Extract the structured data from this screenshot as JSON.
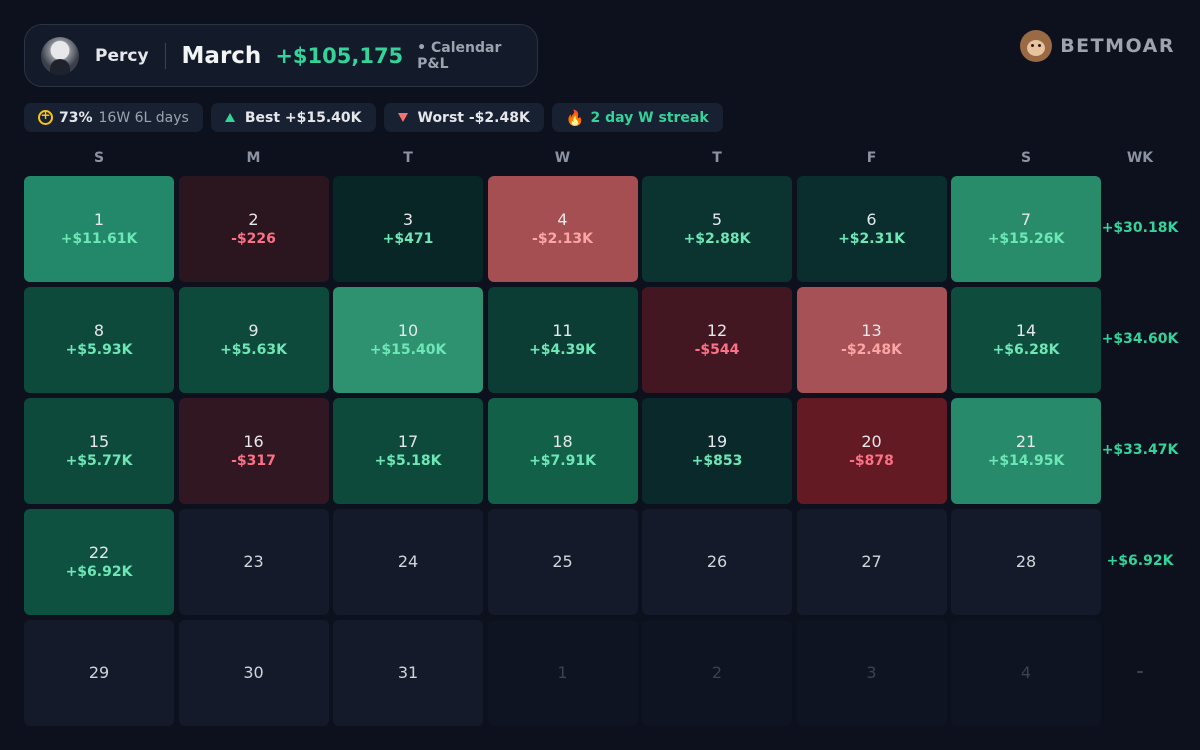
{
  "header": {
    "user_name": "Percy",
    "month": "March",
    "total": "+$105,175",
    "subtitle": "• Calendar P&L"
  },
  "brand": {
    "name": "BETMOAR",
    "logo_icon": "monkey-icon"
  },
  "stats": {
    "win_rate": "73%",
    "record": "16W 6L days",
    "best": "Best +$15.40K",
    "worst": "Worst -$2.48K",
    "streak": "2 day W streak"
  },
  "weekdays": [
    "S",
    "M",
    "T",
    "W",
    "T",
    "F",
    "S",
    "WK"
  ],
  "colors": {
    "positive_text": "#34d399",
    "negative_text": "#f87171",
    "empty_cell": "#141a29"
  },
  "weeks": [
    {
      "total": "+$30.18K",
      "days": [
        {
          "day": "1",
          "pnl": "+$11.61K",
          "color": "#23876a"
        },
        {
          "day": "2",
          "pnl": "-$226",
          "color": "#2b1620"
        },
        {
          "day": "3",
          "pnl": "+$471",
          "color": "#092627"
        },
        {
          "day": "4",
          "pnl": "-$2.13K",
          "color": "#a64f52"
        },
        {
          "day": "5",
          "pnl": "+$2.88K",
          "color": "#0b3330"
        },
        {
          "day": "6",
          "pnl": "+$2.31K",
          "color": "#0a2e2d"
        },
        {
          "day": "7",
          "pnl": "+$15.26K",
          "color": "#288c6b"
        }
      ]
    },
    {
      "total": "+$34.60K",
      "days": [
        {
          "day": "8",
          "pnl": "+$5.93K",
          "color": "#0d4a3b"
        },
        {
          "day": "9",
          "pnl": "+$5.63K",
          "color": "#0d4a3b"
        },
        {
          "day": "10",
          "pnl": "+$15.40K",
          "color": "#2e9170"
        },
        {
          "day": "11",
          "pnl": "+$4.39K",
          "color": "#0b3d34"
        },
        {
          "day": "12",
          "pnl": "-$544",
          "color": "#421722"
        },
        {
          "day": "13",
          "pnl": "-$2.48K",
          "color": "#a65156"
        },
        {
          "day": "14",
          "pnl": "+$6.28K",
          "color": "#0e4d3d"
        }
      ]
    },
    {
      "total": "+$33.47K",
      "days": [
        {
          "day": "15",
          "pnl": "+$5.77K",
          "color": "#0d4a3b"
        },
        {
          "day": "16",
          "pnl": "-$317",
          "color": "#311721"
        },
        {
          "day": "17",
          "pnl": "+$5.18K",
          "color": "#0d4a3b"
        },
        {
          "day": "18",
          "pnl": "+$7.91K",
          "color": "#136049"
        },
        {
          "day": "19",
          "pnl": "+$853",
          "color": "#09292a"
        },
        {
          "day": "20",
          "pnl": "-$878",
          "color": "#631a23"
        },
        {
          "day": "21",
          "pnl": "+$14.95K",
          "color": "#268a6b"
        }
      ]
    },
    {
      "total": "+$6.92K",
      "days": [
        {
          "day": "22",
          "pnl": "+$6.92K",
          "color": "#0e5140"
        },
        {
          "day": "23",
          "pnl": "",
          "color": ""
        },
        {
          "day": "24",
          "pnl": "",
          "color": ""
        },
        {
          "day": "25",
          "pnl": "",
          "color": ""
        },
        {
          "day": "26",
          "pnl": "",
          "color": ""
        },
        {
          "day": "27",
          "pnl": "",
          "color": ""
        },
        {
          "day": "28",
          "pnl": "",
          "color": ""
        }
      ]
    },
    {
      "total": "–",
      "days": [
        {
          "day": "29",
          "pnl": "",
          "color": ""
        },
        {
          "day": "30",
          "pnl": "",
          "color": ""
        },
        {
          "day": "31",
          "pnl": "",
          "color": ""
        },
        {
          "day": "1",
          "pnl": "",
          "color": "",
          "other_month": true
        },
        {
          "day": "2",
          "pnl": "",
          "color": "",
          "other_month": true
        },
        {
          "day": "3",
          "pnl": "",
          "color": "",
          "other_month": true
        },
        {
          "day": "4",
          "pnl": "",
          "color": "",
          "other_month": true
        }
      ]
    }
  ]
}
